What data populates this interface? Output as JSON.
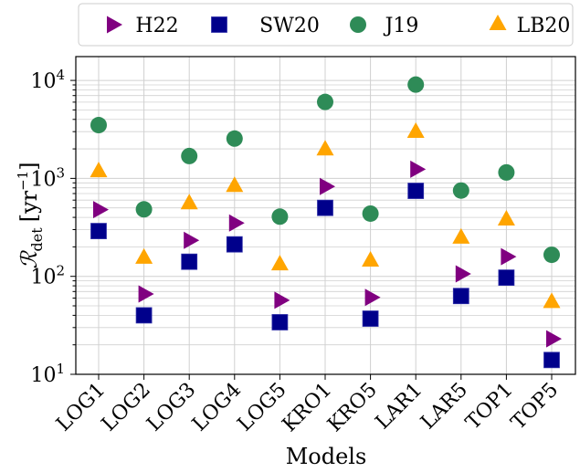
{
  "chart_data": {
    "type": "scatter",
    "title": "",
    "xlabel": "Models",
    "ylabel": "R_det [yr^-1]",
    "ylabel_parts": {
      "main": "ℛ",
      "sub": "det",
      "unit": "[yr",
      "sup": "−1",
      "close": "]"
    },
    "yscale": "log",
    "ylim": [
      10,
      17500
    ],
    "yticks": [
      10,
      100,
      1000,
      10000
    ],
    "ytick_labels": [
      {
        "base": "10",
        "exp": "1"
      },
      {
        "base": "10",
        "exp": "2"
      },
      {
        "base": "10",
        "exp": "3"
      },
      {
        "base": "10",
        "exp": "4"
      }
    ],
    "grid": true,
    "legend_placement": "top",
    "categories": [
      "LOG1",
      "LOG2",
      "LOG3",
      "LOG4",
      "LOG5",
      "KRO1",
      "KRO5",
      "LAR1",
      "LAR5",
      "TOP1",
      "TOP5"
    ],
    "series": [
      {
        "name": "H22",
        "marker": "triangle-right",
        "color": "#800080",
        "values": [
          480,
          66,
          233,
          350,
          57,
          826,
          61,
          1240,
          106,
          159,
          23
        ]
      },
      {
        "name": "SW20",
        "marker": "square",
        "color": "#00008B",
        "values": [
          290,
          40,
          141,
          212,
          34,
          500,
          37,
          746,
          63,
          97,
          14
        ]
      },
      {
        "name": "J19",
        "marker": "circle",
        "color": "#2E8B57",
        "values": [
          3500,
          483,
          1690,
          2550,
          407,
          6030,
          437,
          9060,
          751,
          1150,
          166
        ]
      },
      {
        "name": "LB20",
        "marker": "triangle-up",
        "color": "#FFA500",
        "values": [
          1170,
          153,
          550,
          826,
          131,
          1950,
          143,
          2950,
          245,
          376,
          54
        ]
      }
    ]
  }
}
